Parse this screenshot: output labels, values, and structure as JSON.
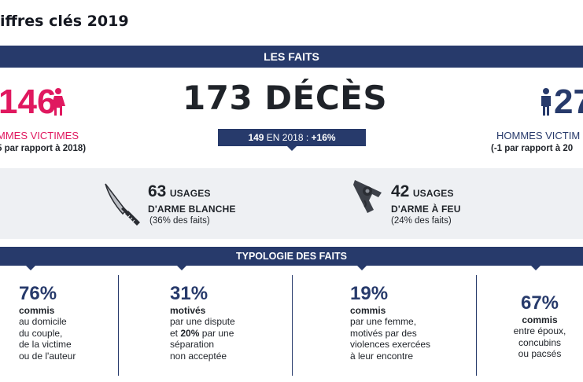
{
  "page_title": "iffres clés 2019",
  "faits": {
    "header": "LES FAITS",
    "femmes": {
      "number": "146",
      "label": "MMES VICTIMES",
      "compare": "5 par rapport à 2018)"
    },
    "deces": {
      "title": "173 DÉCÈS",
      "prev_value": "149",
      "prev_text": " EN 2018 : ",
      "change": "+16%"
    },
    "hommes": {
      "number": "27",
      "label": "HOMMES VICTIM",
      "compare": "(-1 par rapport à 20"
    }
  },
  "weapons": [
    {
      "count": "63",
      "unit": "USAGES",
      "type": "D'ARME BLANCHE",
      "share": "(36% des faits)",
      "icon": "knife-icon"
    },
    {
      "count": "42",
      "unit": "USAGES",
      "type": "D'ARME À FEU",
      "share": "(24% des faits)",
      "icon": "revolver-icon"
    }
  ],
  "typologie": {
    "header": "TYPOLOGIE DES FAITS",
    "items": [
      {
        "pct": "76%",
        "word": "commis",
        "lines": [
          "au domicile",
          "du couple,",
          "de la victime",
          "ou de l'auteur"
        ]
      },
      {
        "pct": "31%",
        "word": "motivés",
        "lines": [
          "par une dispute"
        ],
        "line2_pre": "et ",
        "line2_bold": "20%",
        "line2_post": " par une",
        "lines_after": [
          "séparation",
          "non acceptée"
        ]
      },
      {
        "pct": "19%",
        "word": "commis",
        "lines": [
          "par une femme,",
          "motivés par des",
          "violences exercées",
          "à leur encontre"
        ]
      },
      {
        "pct": "67%",
        "word": "commis",
        "lines": [
          "entre époux,",
          "concubins",
          "ou pacsés"
        ]
      }
    ]
  },
  "colors": {
    "navy": "#273a6b",
    "pink": "#e0185f",
    "grey_band": "#eef0f3"
  }
}
